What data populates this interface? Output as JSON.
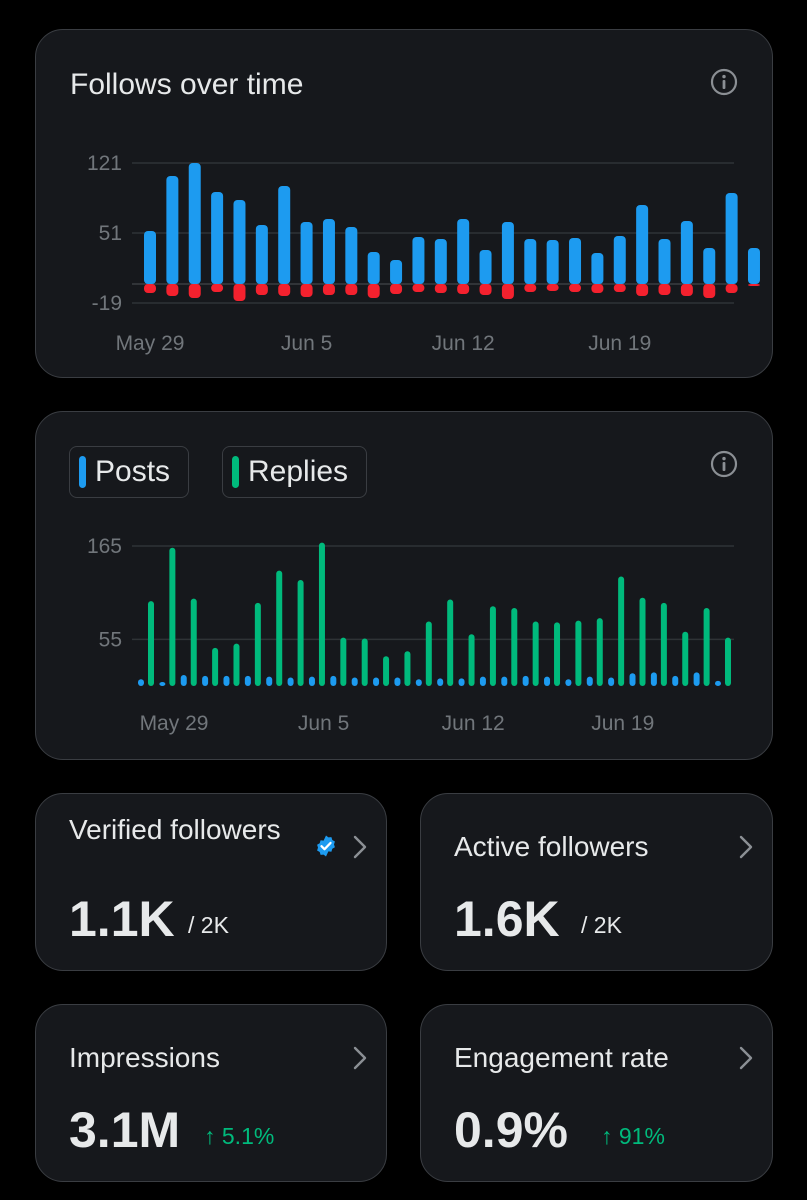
{
  "follows_chart": {
    "title": "Follows over time",
    "chart_data": {
      "type": "bar",
      "series": [
        {
          "name": "",
          "color": "#1d9bf0",
          "values": [
            53,
            108,
            121,
            92,
            84,
            59,
            98,
            62,
            65,
            57,
            32,
            24,
            47,
            45,
            65,
            34,
            62,
            45,
            44,
            46,
            31,
            48,
            79,
            45,
            63,
            36,
            91,
            36
          ]
        },
        {
          "name": "",
          "color": "#f4212e",
          "values": [
            -9,
            -12,
            -14,
            -8,
            -17,
            -11,
            -12,
            -13,
            -11,
            -11,
            -14,
            -10,
            -8,
            -9,
            -10,
            -11,
            -15,
            -8,
            -7,
            -8,
            -9,
            -8,
            -12,
            -11,
            -12,
            -14,
            -9,
            -2
          ]
        }
      ],
      "x_tick_labels": [
        "May 29",
        "Jun 5",
        "Jun 12",
        "Jun 19"
      ],
      "x_tick_indices": [
        0,
        7,
        14,
        21
      ],
      "y_ticks": [
        121,
        51,
        -19
      ],
      "ylim": [
        -19,
        121
      ],
      "grid": true
    }
  },
  "posts_chart": {
    "legend": [
      {
        "label": "Posts",
        "color": "#1d9bf0"
      },
      {
        "label": "Replies",
        "color": "#00ba7c"
      }
    ],
    "chart_data": {
      "type": "bar",
      "series": [
        {
          "name": "Posts",
          "color": "#1d9bf0",
          "values": [
            8,
            4,
            13,
            12,
            12,
            12,
            11,
            10,
            11,
            12,
            10,
            10,
            10,
            8,
            9,
            9,
            11,
            11,
            12,
            11,
            8,
            11,
            10,
            15,
            16,
            12,
            16,
            6
          ]
        },
        {
          "name": "Replies",
          "color": "#00ba7c",
          "values": [
            100,
            163,
            103,
            45,
            50,
            98,
            136,
            125,
            169,
            57,
            56,
            35,
            41,
            76,
            102,
            61,
            94,
            92,
            76,
            75,
            77,
            80,
            129,
            104,
            98,
            64,
            92,
            57
          ]
        }
      ],
      "x_tick_labels": [
        "May 29",
        "Jun 5",
        "Jun 12",
        "Jun 19"
      ],
      "x_tick_indices": [
        0,
        7,
        14,
        21
      ],
      "y_ticks": [
        165,
        55
      ],
      "ylim": [
        0,
        165
      ],
      "grid": true
    }
  },
  "stats": {
    "verified": {
      "label": "Verified followers",
      "value": "1.1K",
      "total": "/ 2K"
    },
    "active": {
      "label": "Active followers",
      "value": "1.6K",
      "total": "/ 2K"
    },
    "impressions": {
      "label": "Impressions",
      "value": "3.1M",
      "change": "↑ 5.1%"
    },
    "engagement": {
      "label": "Engagement rate",
      "value": "0.9%",
      "change": "↑ 91%"
    }
  },
  "icons": [
    "info-icon",
    "verified-badge-icon",
    "chevron-right-icon"
  ],
  "colors": {
    "accent_blue": "#1d9bf0",
    "negative_red": "#f4212e",
    "positive_green": "#00ba7c",
    "card_bg": "#16181c"
  }
}
